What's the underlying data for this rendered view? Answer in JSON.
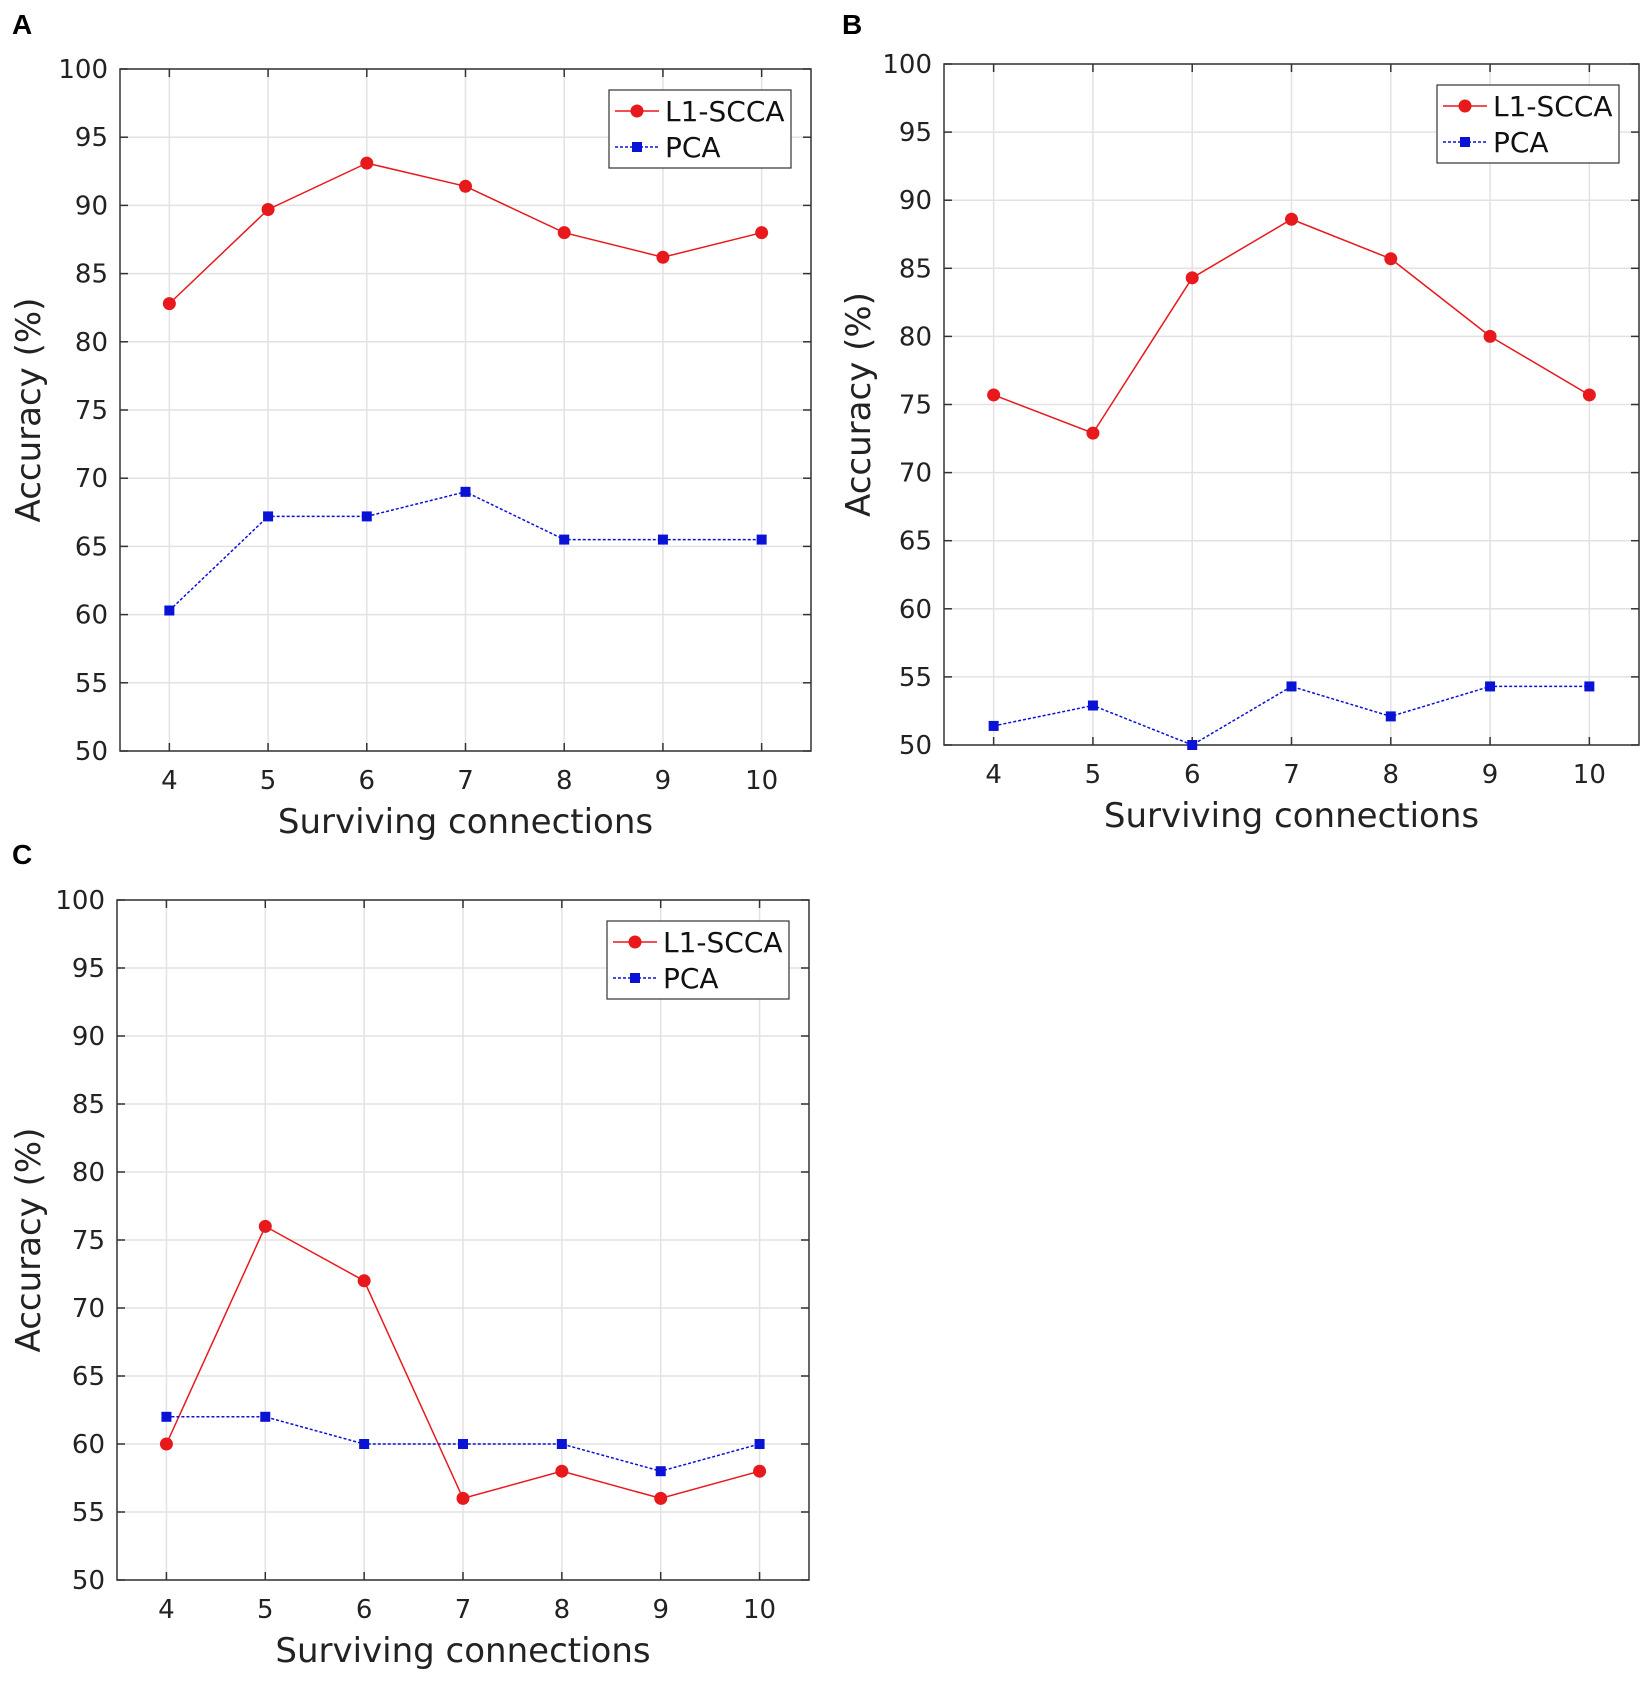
{
  "chart_data": [
    {
      "panel": "A",
      "type": "line",
      "title": "",
      "xlabel": "Surviving connections",
      "ylabel": "Accuracy (%)",
      "x": [
        4,
        5,
        6,
        7,
        8,
        9,
        10
      ],
      "xlim": [
        3.5,
        10.5
      ],
      "ylim": [
        50,
        100
      ],
      "yticks": [
        50,
        55,
        60,
        65,
        70,
        75,
        80,
        85,
        90,
        95,
        100
      ],
      "grid": true,
      "legend_position": "top-right",
      "series": [
        {
          "name": "L1-SCCA",
          "color": "#e8191c",
          "marker": "circle",
          "values": [
            82.8,
            89.7,
            93.1,
            91.4,
            88.0,
            86.2,
            88.0
          ]
        },
        {
          "name": "PCA",
          "color": "#0a12d6",
          "marker": "square",
          "values": [
            60.3,
            67.2,
            67.2,
            69.0,
            65.5,
            65.5,
            65.5
          ]
        }
      ]
    },
    {
      "panel": "B",
      "type": "line",
      "title": "",
      "xlabel": "Surviving connections",
      "ylabel": "Accuracy (%)",
      "x": [
        4,
        5,
        6,
        7,
        8,
        9,
        10
      ],
      "xlim": [
        3.5,
        10.5
      ],
      "ylim": [
        50,
        100
      ],
      "yticks": [
        50,
        55,
        60,
        65,
        70,
        75,
        80,
        85,
        90,
        95,
        100
      ],
      "grid": true,
      "legend_position": "top-right",
      "series": [
        {
          "name": "L1-SCCA",
          "color": "#e8191c",
          "marker": "circle",
          "values": [
            75.7,
            72.9,
            84.3,
            88.6,
            85.7,
            80.0,
            75.7
          ]
        },
        {
          "name": "PCA",
          "color": "#0a12d6",
          "marker": "square",
          "values": [
            51.4,
            52.9,
            50.0,
            54.3,
            52.1,
            54.3,
            54.3
          ]
        }
      ]
    },
    {
      "panel": "C",
      "type": "line",
      "title": "",
      "xlabel": "Surviving connections",
      "ylabel": "Accuracy (%)",
      "x": [
        4,
        5,
        6,
        7,
        8,
        9,
        10
      ],
      "xlim": [
        3.5,
        10.5
      ],
      "ylim": [
        50,
        100
      ],
      "yticks": [
        50,
        55,
        60,
        65,
        70,
        75,
        80,
        85,
        90,
        95,
        100
      ],
      "grid": true,
      "legend_position": "top-right",
      "series": [
        {
          "name": "L1-SCCA",
          "color": "#e8191c",
          "marker": "circle",
          "values": [
            60,
            76,
            72,
            56,
            58,
            56,
            58
          ]
        },
        {
          "name": "PCA",
          "color": "#0a12d6",
          "marker": "square",
          "values": [
            62,
            62,
            60,
            60,
            60,
            58,
            60
          ]
        }
      ]
    }
  ]
}
